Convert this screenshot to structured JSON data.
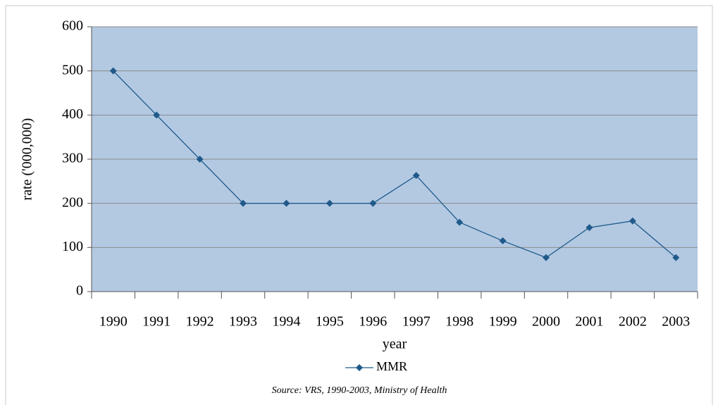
{
  "chart_data": {
    "type": "line",
    "x_label": "year",
    "y_label": "rate ('000,000)",
    "categories": [
      "1990",
      "1991",
      "1992",
      "1993",
      "1994",
      "1995",
      "1996",
      "1997",
      "1998",
      "1999",
      "2000",
      "2001",
      "2002",
      "2003"
    ],
    "series": [
      {
        "name": "MMR",
        "color": "#1f5a8a",
        "values": [
          500,
          400,
          300,
          200,
          200,
          200,
          200,
          263,
          157,
          115,
          77,
          145,
          160,
          77
        ]
      }
    ],
    "ylim": [
      0,
      600
    ],
    "yticks": [
      0,
      100,
      200,
      300,
      400,
      500,
      600
    ],
    "grid": true,
    "legend": "bottom",
    "source": "Source: VRS, 1990-2003, Ministry of Health"
  }
}
